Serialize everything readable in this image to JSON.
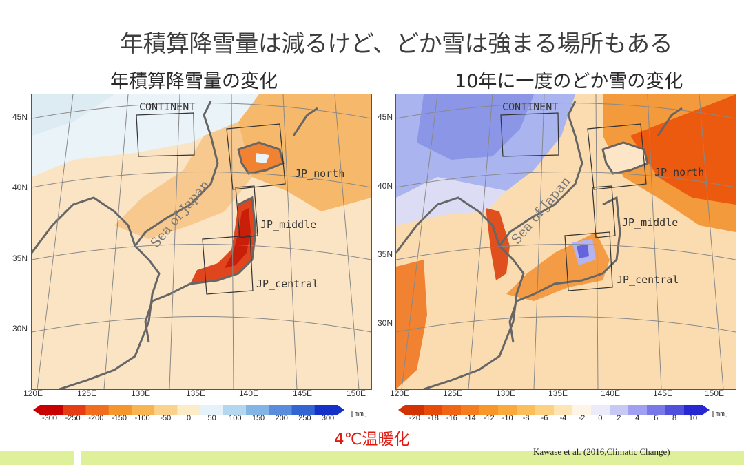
{
  "slide": {
    "title": "年積算降雪量は減るけど、どか雪は強まる場所もある",
    "scenario_label": "4℃温暖化",
    "citation": "Kawase et al. (2016,Climatic Change)"
  },
  "panels": [
    {
      "title": "年積算降雪量の変化",
      "regions": [
        "CONTINENT",
        "JP_north",
        "JP_middle",
        "JP_central"
      ],
      "sea_label": "Sea of Japan",
      "lat_labels": [
        "45N",
        "40N",
        "35N",
        "30N"
      ],
      "lon_labels": [
        "120E",
        "125E",
        "130E",
        "135E",
        "140E",
        "145E",
        "150E"
      ],
      "colorbar": {
        "ticks": [
          "-300",
          "-250",
          "-200",
          "-150",
          "-100",
          "-50",
          "0",
          "50",
          "100",
          "150",
          "200",
          "250",
          "300"
        ],
        "unit": "[mm]",
        "colors": [
          "#c80000",
          "#e63c14",
          "#f06e1e",
          "#f5962d",
          "#f8b450",
          "#fbd28c",
          "#fdecc8",
          "#e6f2fa",
          "#b4d7f0",
          "#82b4e6",
          "#5a8cdc",
          "#3264d2",
          "#1432c8"
        ]
      }
    },
    {
      "title": "10年に一度のどか雪の変化",
      "regions": [
        "CONTINENT",
        "JP_north",
        "JP_middle",
        "JP_central"
      ],
      "sea_label": "Sea of Japan",
      "lat_labels": [
        "45N",
        "40N",
        "35N",
        "30N"
      ],
      "lon_labels": [
        "120E",
        "125E",
        "130E",
        "135E",
        "140E",
        "145E",
        "150E"
      ],
      "colorbar": {
        "ticks": [
          "-20",
          "-18",
          "-16",
          "-14",
          "-12",
          "-10",
          "-8",
          "-6",
          "-4",
          "-2",
          "0",
          "2",
          "4",
          "6",
          "8",
          "10"
        ],
        "unit": "[mm]",
        "colors": [
          "#d23200",
          "#e64b0a",
          "#f06414",
          "#f57d1e",
          "#f89628",
          "#faaa3c",
          "#fbbe5a",
          "#fcd282",
          "#fde6b4",
          "#fff5e6",
          "#ebebfa",
          "#c8c8f5",
          "#a0a0f0",
          "#7878e6",
          "#5050dc",
          "#2828d2"
        ]
      }
    }
  ]
}
